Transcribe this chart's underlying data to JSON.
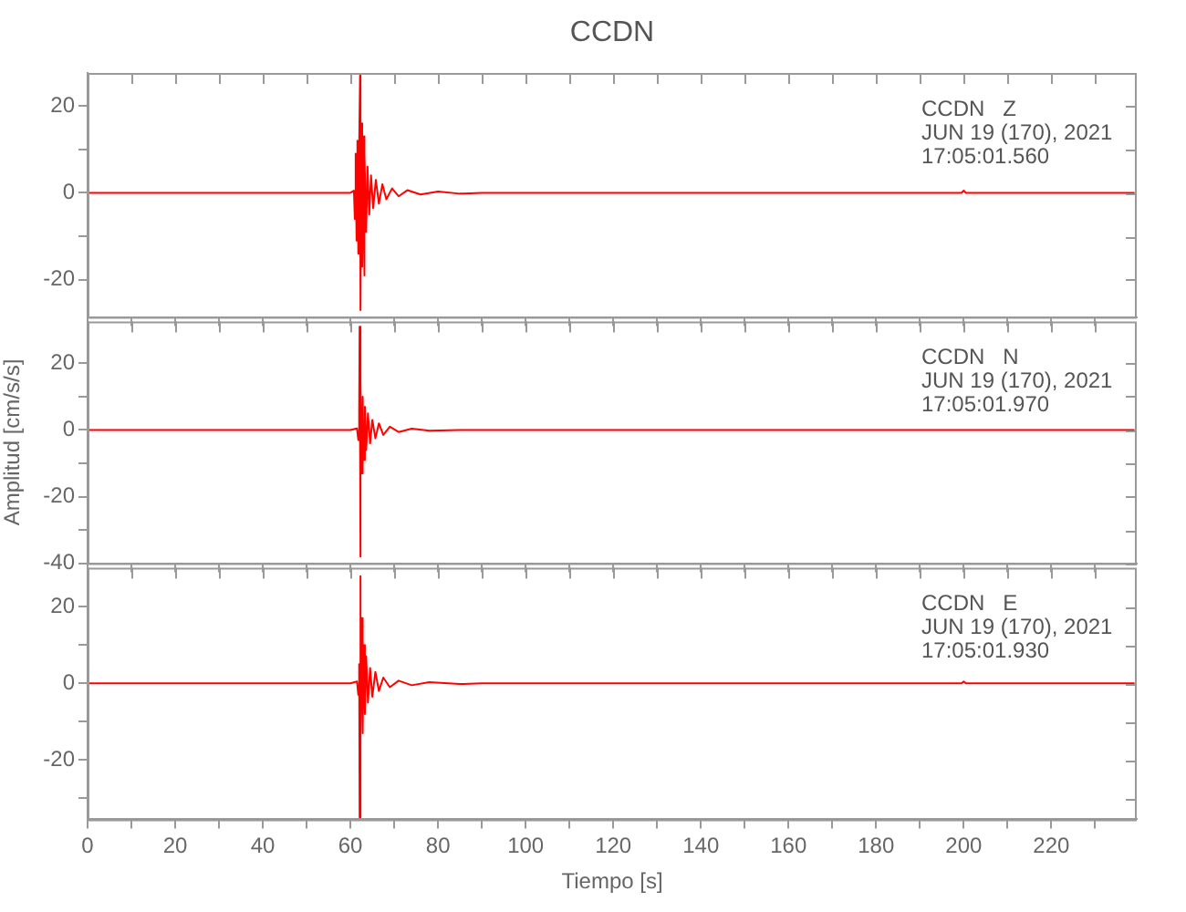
{
  "chart_data": [
    {
      "type": "line",
      "title": "CCDN",
      "annotations": [
        "CCDN   Z",
        "JUN 19 (170), 2021",
        "17:05:01.560"
      ],
      "x": [
        0,
        20,
        40,
        60,
        60.8,
        61.0,
        61.2,
        61.4,
        61.6,
        61.8,
        62.0,
        62.2,
        62.3,
        62.5,
        62.7,
        62.9,
        63.1,
        63.3,
        63.6,
        63.9,
        64.3,
        64.7,
        65.2,
        65.8,
        66.5,
        67.3,
        68.2,
        69.5,
        71,
        73,
        76,
        80,
        85,
        90,
        199.5,
        200,
        200.5,
        239
      ],
      "series": [
        {
          "color": "#ff0000",
          "values": [
            0,
            0,
            0,
            0,
            0.5,
            -6,
            9,
            -11,
            12,
            -14,
            11,
            27,
            -27,
            16,
            -17,
            13,
            -19,
            9,
            -9,
            6,
            -5,
            4,
            -3.5,
            3,
            -2.5,
            2,
            -1.5,
            1,
            -0.8,
            0.6,
            -0.4,
            0.3,
            -0.2,
            0,
            0,
            0.5,
            0,
            0
          ]
        }
      ],
      "xlim": [
        0,
        239.5
      ],
      "xticks": [
        0,
        {
          "value": 10,
          "label": null
        },
        20,
        {
          "value": 30,
          "label": null
        },
        40,
        {
          "value": 50,
          "label": null
        },
        60,
        {
          "value": 70,
          "label": null
        },
        80,
        {
          "value": 90,
          "label": null
        },
        100,
        {
          "value": 110,
          "label": null
        },
        120,
        {
          "value": 130,
          "label": null
        },
        140,
        {
          "value": 150,
          "label": null
        },
        160,
        {
          "value": 170,
          "label": null
        },
        180,
        {
          "value": 190,
          "label": null
        },
        200,
        {
          "value": 210,
          "label": null
        },
        220,
        {
          "value": 230,
          "label": null
        }
      ],
      "ylim": [
        -28.6,
        27.6
      ],
      "yticks": [
        -20,
        {
          "value": -10,
          "label": null
        },
        0,
        {
          "value": 10,
          "label": null
        },
        20
      ],
      "tick_labels": "y"
    },
    {
      "type": "line",
      "ylabel": "Amplitud [cm/s/s]",
      "annotations": [
        "CCDN   N",
        "JUN 19 (170), 2021",
        "17:05:01.970"
      ],
      "x": [
        0,
        20,
        40,
        60,
        61.5,
        61.8,
        62.0,
        62.1,
        62.2,
        62.4,
        62.6,
        62.8,
        63.0,
        63.3,
        63.6,
        64.0,
        64.5,
        65,
        65.7,
        66.5,
        67.5,
        69,
        71,
        74,
        78,
        85,
        239
      ],
      "series": [
        {
          "color": "#ff0000",
          "values": [
            0,
            0,
            0,
            0,
            0.5,
            -3,
            6,
            31,
            -38,
            14,
            -13,
            10,
            -9,
            7,
            -6,
            5,
            -4,
            3,
            -2.5,
            2,
            -1.5,
            1,
            -0.6,
            0.4,
            -0.2,
            0,
            0
          ]
        }
      ],
      "xlim": [
        0,
        239.5
      ],
      "xticks": [
        0,
        {
          "value": 10,
          "label": null
        },
        20,
        {
          "value": 30,
          "label": null
        },
        40,
        {
          "value": 50,
          "label": null
        },
        60,
        {
          "value": 70,
          "label": null
        },
        80,
        {
          "value": 90,
          "label": null
        },
        100,
        {
          "value": 110,
          "label": null
        },
        120,
        {
          "value": 130,
          "label": null
        },
        140,
        {
          "value": 150,
          "label": null
        },
        160,
        {
          "value": 170,
          "label": null
        },
        180,
        {
          "value": 190,
          "label": null
        },
        200,
        {
          "value": 210,
          "label": null
        },
        220,
        {
          "value": 230,
          "label": null
        }
      ],
      "ylim": [
        -40,
        32.6
      ],
      "yticks": [
        -40,
        {
          "value": -30,
          "label": null
        },
        -20,
        {
          "value": -10,
          "label": null
        },
        0,
        {
          "value": 10,
          "label": null
        },
        20
      ],
      "tick_labels": "y"
    },
    {
      "type": "line",
      "xlabel": "Tiempo [s]",
      "annotations": [
        "CCDN   E",
        "JUN 19 (170), 2021",
        "17:05:01.930"
      ],
      "x": [
        0,
        20,
        40,
        60,
        61.5,
        61.8,
        62.0,
        62.1,
        62.2,
        62.4,
        62.6,
        62.8,
        63.0,
        63.3,
        63.6,
        64,
        64.5,
        65,
        65.7,
        66.5,
        67.5,
        69,
        71,
        74,
        78,
        85,
        90,
        199.5,
        200,
        200.5,
        239
      ],
      "series": [
        {
          "color": "#ff0000",
          "values": [
            0,
            0,
            0,
            0,
            0.5,
            -3,
            5,
            -35,
            28,
            -12,
            17,
            -13,
            10,
            -8,
            7,
            -5,
            4,
            -3.5,
            3,
            -2,
            1.5,
            -1,
            0.7,
            -0.5,
            0.3,
            -0.2,
            0,
            0,
            0.5,
            0,
            0
          ]
        }
      ],
      "xlim": [
        0,
        239.5
      ],
      "xticks": [
        0,
        {
          "value": 10,
          "label": null
        },
        20,
        {
          "value": 30,
          "label": null
        },
        40,
        {
          "value": 50,
          "label": null
        },
        60,
        {
          "value": 70,
          "label": null
        },
        80,
        {
          "value": 90,
          "label": null
        },
        100,
        {
          "value": 110,
          "label": null
        },
        120,
        {
          "value": 130,
          "label": null
        },
        140,
        {
          "value": 150,
          "label": null
        },
        160,
        {
          "value": 170,
          "label": null
        },
        180,
        {
          "value": 190,
          "label": null
        },
        200,
        {
          "value": 210,
          "label": null
        },
        220,
        {
          "value": 230,
          "label": null
        }
      ],
      "ylim": [
        -35.5,
        30.2
      ],
      "yticks": [
        {
          "value": -30,
          "label": null
        },
        -20,
        {
          "value": -10,
          "label": null
        },
        0,
        {
          "value": 10,
          "label": null
        },
        20
      ]
    }
  ]
}
